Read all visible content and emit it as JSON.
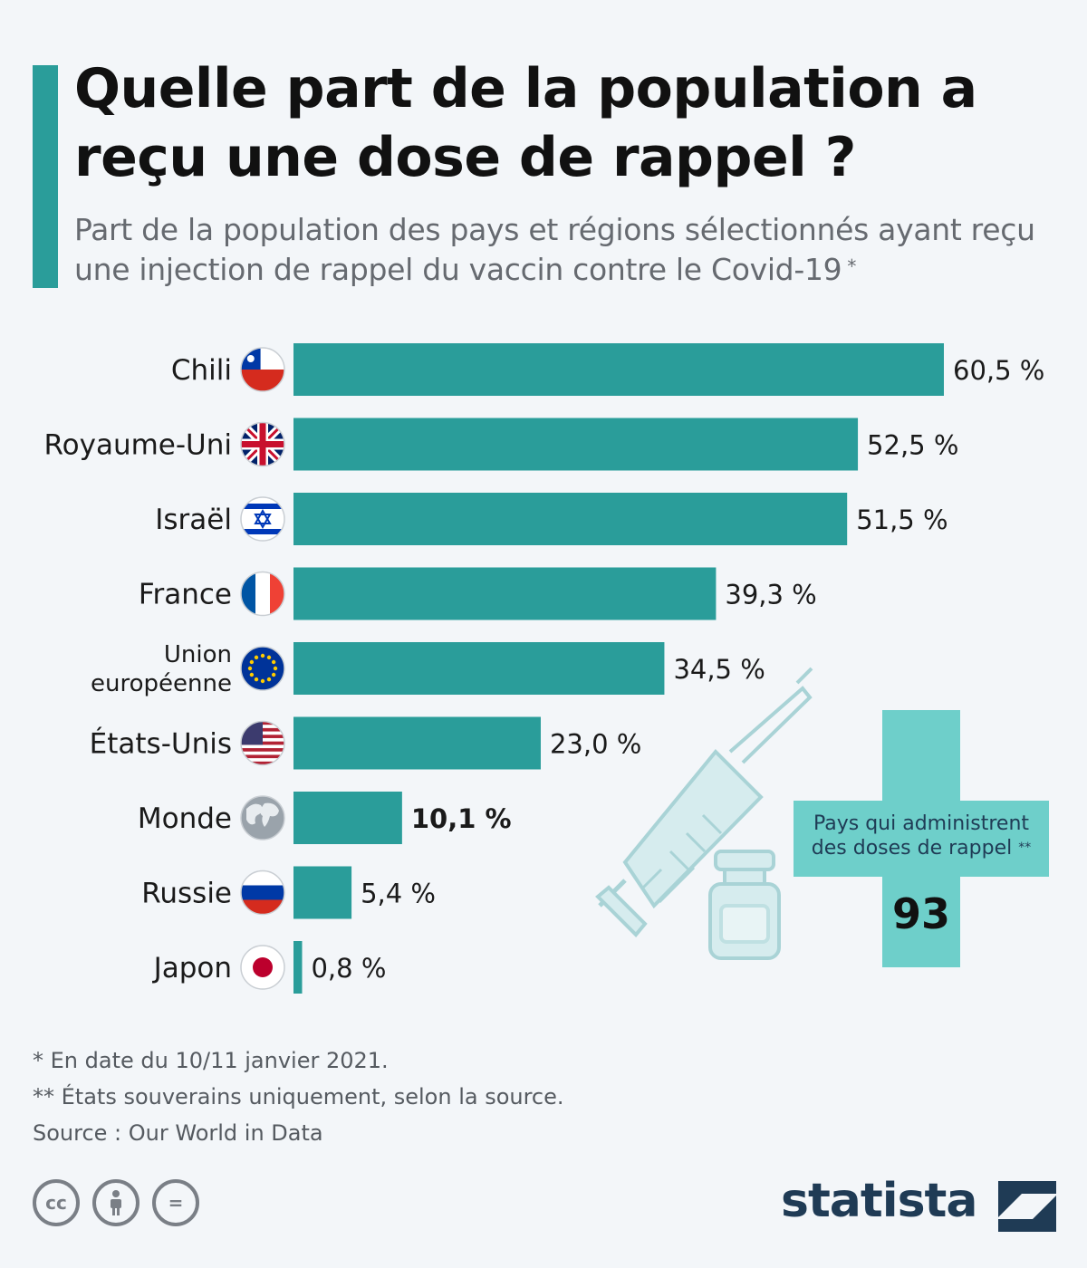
{
  "header": {
    "title": "Quelle part de la population a reçu une dose de rappel ?",
    "subtitle": "Part de la population des pays et régions sélectionnés ayant reçu une injection de rappel du vaccin contre le Covid-19",
    "subtitle_mark": "*"
  },
  "chart_data": {
    "type": "bar",
    "orientation": "horizontal",
    "categories": [
      "Chili",
      "Royaume-Uni",
      "Israël",
      "France",
      "Union européenne",
      "États-Unis",
      "Monde",
      "Russie",
      "Japon"
    ],
    "values": [
      60.5,
      52.5,
      51.5,
      39.3,
      34.5,
      23.0,
      10.1,
      5.4,
      0.8
    ],
    "value_labels": [
      "60,5 %",
      "52,5 %",
      "51,5 %",
      "39,3 %",
      "34,5 %",
      "23,0 %",
      "10,1 %",
      "5,4 %",
      "0,8 %"
    ],
    "highlight": "Monde",
    "unit": "%",
    "xlim": [
      0,
      60.5
    ],
    "bar_color": "#2a9d9a",
    "icons": [
      "flag-chile-icon",
      "flag-uk-icon",
      "flag-israel-icon",
      "flag-france-icon",
      "flag-eu-icon",
      "flag-usa-icon",
      "globe-icon",
      "flag-russia-icon",
      "flag-japan-icon"
    ]
  },
  "callout": {
    "label": "Pays qui administrent des doses de rappel",
    "label_mark": "**",
    "value": "93",
    "color": "#6ecfca"
  },
  "footnotes": {
    "note1": "*   En date du 10/11 janvier 2021.",
    "note2": "** États souverains uniquement, selon la source.",
    "source": "Source : Our World in Data"
  },
  "license": {
    "cc": "cc",
    "nd": "="
  },
  "brand": {
    "name": "statista",
    "color": "#1f3b55"
  }
}
